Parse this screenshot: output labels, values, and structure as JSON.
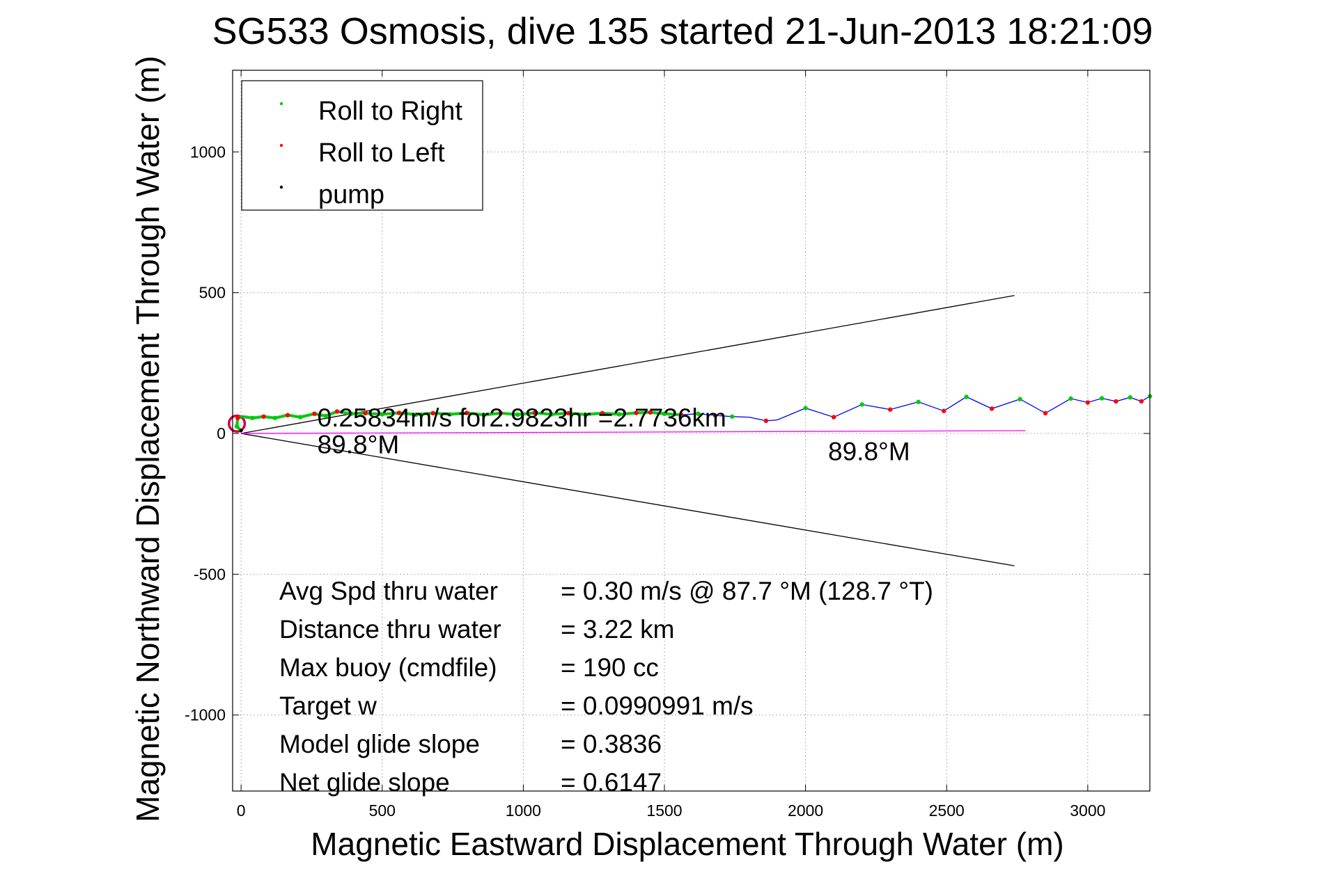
{
  "chart_data": {
    "type": "scatter",
    "title": "SG533 Osmosis, dive 135 started 21-Jun-2013 18:21:09",
    "xlabel": "Magnetic Eastward Displacement Through Water (m)",
    "ylabel": "Magnetic Northward Displacement Through Water (m)",
    "xlim": [
      -30,
      3220
    ],
    "ylim": [
      -1270,
      1290
    ],
    "xticks": [
      0,
      500,
      1000,
      1500,
      2000,
      2500,
      3000
    ],
    "yticks": [
      -1000,
      -500,
      0,
      500,
      1000
    ],
    "grid": true,
    "legend_position": "top-left",
    "legend": [
      {
        "label": "Roll to Right",
        "color": "#00cc00"
      },
      {
        "label": "Roll to Left",
        "color": "#ff0000"
      },
      {
        "label": "pump",
        "color": "#000000"
      }
    ],
    "series": [
      {
        "name": "track",
        "color": "#0000ff",
        "points": [
          [
            0,
            10
          ],
          [
            -15,
            25
          ],
          [
            -12,
            55
          ],
          [
            5,
            60
          ],
          [
            40,
            55
          ],
          [
            80,
            60
          ],
          [
            120,
            55
          ],
          [
            165,
            65
          ],
          [
            210,
            58
          ],
          [
            260,
            70
          ],
          [
            300,
            62
          ],
          [
            340,
            78
          ],
          [
            390,
            70
          ],
          [
            440,
            72
          ],
          [
            500,
            68
          ],
          [
            560,
            73
          ],
          [
            620,
            67
          ],
          [
            680,
            72
          ],
          [
            740,
            68
          ],
          [
            800,
            73
          ],
          [
            860,
            66
          ],
          [
            920,
            72
          ],
          [
            980,
            67
          ],
          [
            1040,
            73
          ],
          [
            1100,
            68
          ],
          [
            1160,
            72
          ],
          [
            1220,
            67
          ],
          [
            1280,
            72
          ],
          [
            1340,
            68
          ],
          [
            1400,
            73
          ],
          [
            1450,
            75
          ],
          [
            1500,
            70
          ],
          [
            1560,
            66
          ],
          [
            1620,
            70
          ],
          [
            1680,
            64
          ],
          [
            1740,
            60
          ],
          [
            1800,
            58
          ],
          [
            1860,
            45
          ],
          [
            1900,
            48
          ],
          [
            2000,
            90
          ],
          [
            2100,
            58
          ],
          [
            2200,
            103
          ],
          [
            2300,
            85
          ],
          [
            2400,
            112
          ],
          [
            2490,
            80
          ],
          [
            2570,
            130
          ],
          [
            2660,
            88
          ],
          [
            2760,
            122
          ],
          [
            2850,
            72
          ],
          [
            2940,
            124
          ],
          [
            3000,
            110
          ],
          [
            3050,
            125
          ],
          [
            3100,
            114
          ],
          [
            3150,
            128
          ],
          [
            3190,
            114
          ],
          [
            3220,
            132
          ]
        ]
      }
    ],
    "roll_right_points": [
      [
        -15,
        25
      ],
      [
        40,
        55
      ],
      [
        120,
        55
      ],
      [
        210,
        58
      ],
      [
        300,
        62
      ],
      [
        390,
        70
      ],
      [
        500,
        68
      ],
      [
        620,
        67
      ],
      [
        740,
        68
      ],
      [
        860,
        66
      ],
      [
        980,
        67
      ],
      [
        1100,
        68
      ],
      [
        1220,
        67
      ],
      [
        1340,
        68
      ],
      [
        1500,
        70
      ],
      [
        1620,
        70
      ],
      [
        1740,
        60
      ],
      [
        2000,
        90
      ],
      [
        2200,
        103
      ],
      [
        2400,
        112
      ],
      [
        2570,
        130
      ],
      [
        2760,
        122
      ],
      [
        2940,
        124
      ],
      [
        3050,
        125
      ],
      [
        3150,
        128
      ],
      [
        3220,
        132
      ]
    ],
    "roll_left_points": [
      [
        -12,
        55
      ],
      [
        80,
        60
      ],
      [
        165,
        65
      ],
      [
        260,
        70
      ],
      [
        340,
        78
      ],
      [
        440,
        72
      ],
      [
        560,
        73
      ],
      [
        680,
        72
      ],
      [
        800,
        73
      ],
      [
        920,
        72
      ],
      [
        1040,
        73
      ],
      [
        1160,
        72
      ],
      [
        1280,
        72
      ],
      [
        1400,
        73
      ],
      [
        1450,
        75
      ],
      [
        1560,
        66
      ],
      [
        1680,
        64
      ],
      [
        1860,
        45
      ],
      [
        2100,
        58
      ],
      [
        2300,
        85
      ],
      [
        2490,
        80
      ],
      [
        2660,
        88
      ],
      [
        2850,
        72
      ],
      [
        3000,
        110
      ],
      [
        3100,
        114
      ],
      [
        3190,
        114
      ]
    ],
    "pump_points": [
      [
        0,
        10
      ]
    ],
    "start_loop": {
      "center": [
        -15,
        35
      ],
      "radius": 28,
      "color": "#cc0044"
    },
    "bearing_lines": [
      {
        "from": [
          0,
          0
        ],
        "to": [
          2740,
          490
        ],
        "color": "#000000"
      },
      {
        "from": [
          0,
          0
        ],
        "to": [
          2740,
          -470
        ],
        "color": "#000000"
      },
      {
        "from": [
          0,
          0
        ],
        "to": [
          2780,
          10
        ],
        "color": "#ff00ff"
      }
    ],
    "annotations": [
      {
        "text": "0.25834m/s for2.9823hr =2.7736km",
        "x": 270,
        "y": 25
      },
      {
        "text": "89.8°M",
        "x": 270,
        "y": -70
      },
      {
        "text": "89.8°M",
        "x": 2080,
        "y": -95
      }
    ],
    "stats": [
      {
        "label": "Avg Spd thru water",
        "value": "=  0.30 m/s @  87.7 °M (128.7 °T)"
      },
      {
        "label": "Distance thru water",
        "value": "=  3.22 km"
      },
      {
        "label": "Max buoy (cmdfile)",
        "value": "= 190 cc"
      },
      {
        "label": "Target w",
        "value": "= 0.0990991 m/s"
      },
      {
        "label": "Model glide slope",
        "value": "= 0.3836"
      },
      {
        "label": "Net glide slope",
        "value": "= 0.6147"
      }
    ]
  }
}
